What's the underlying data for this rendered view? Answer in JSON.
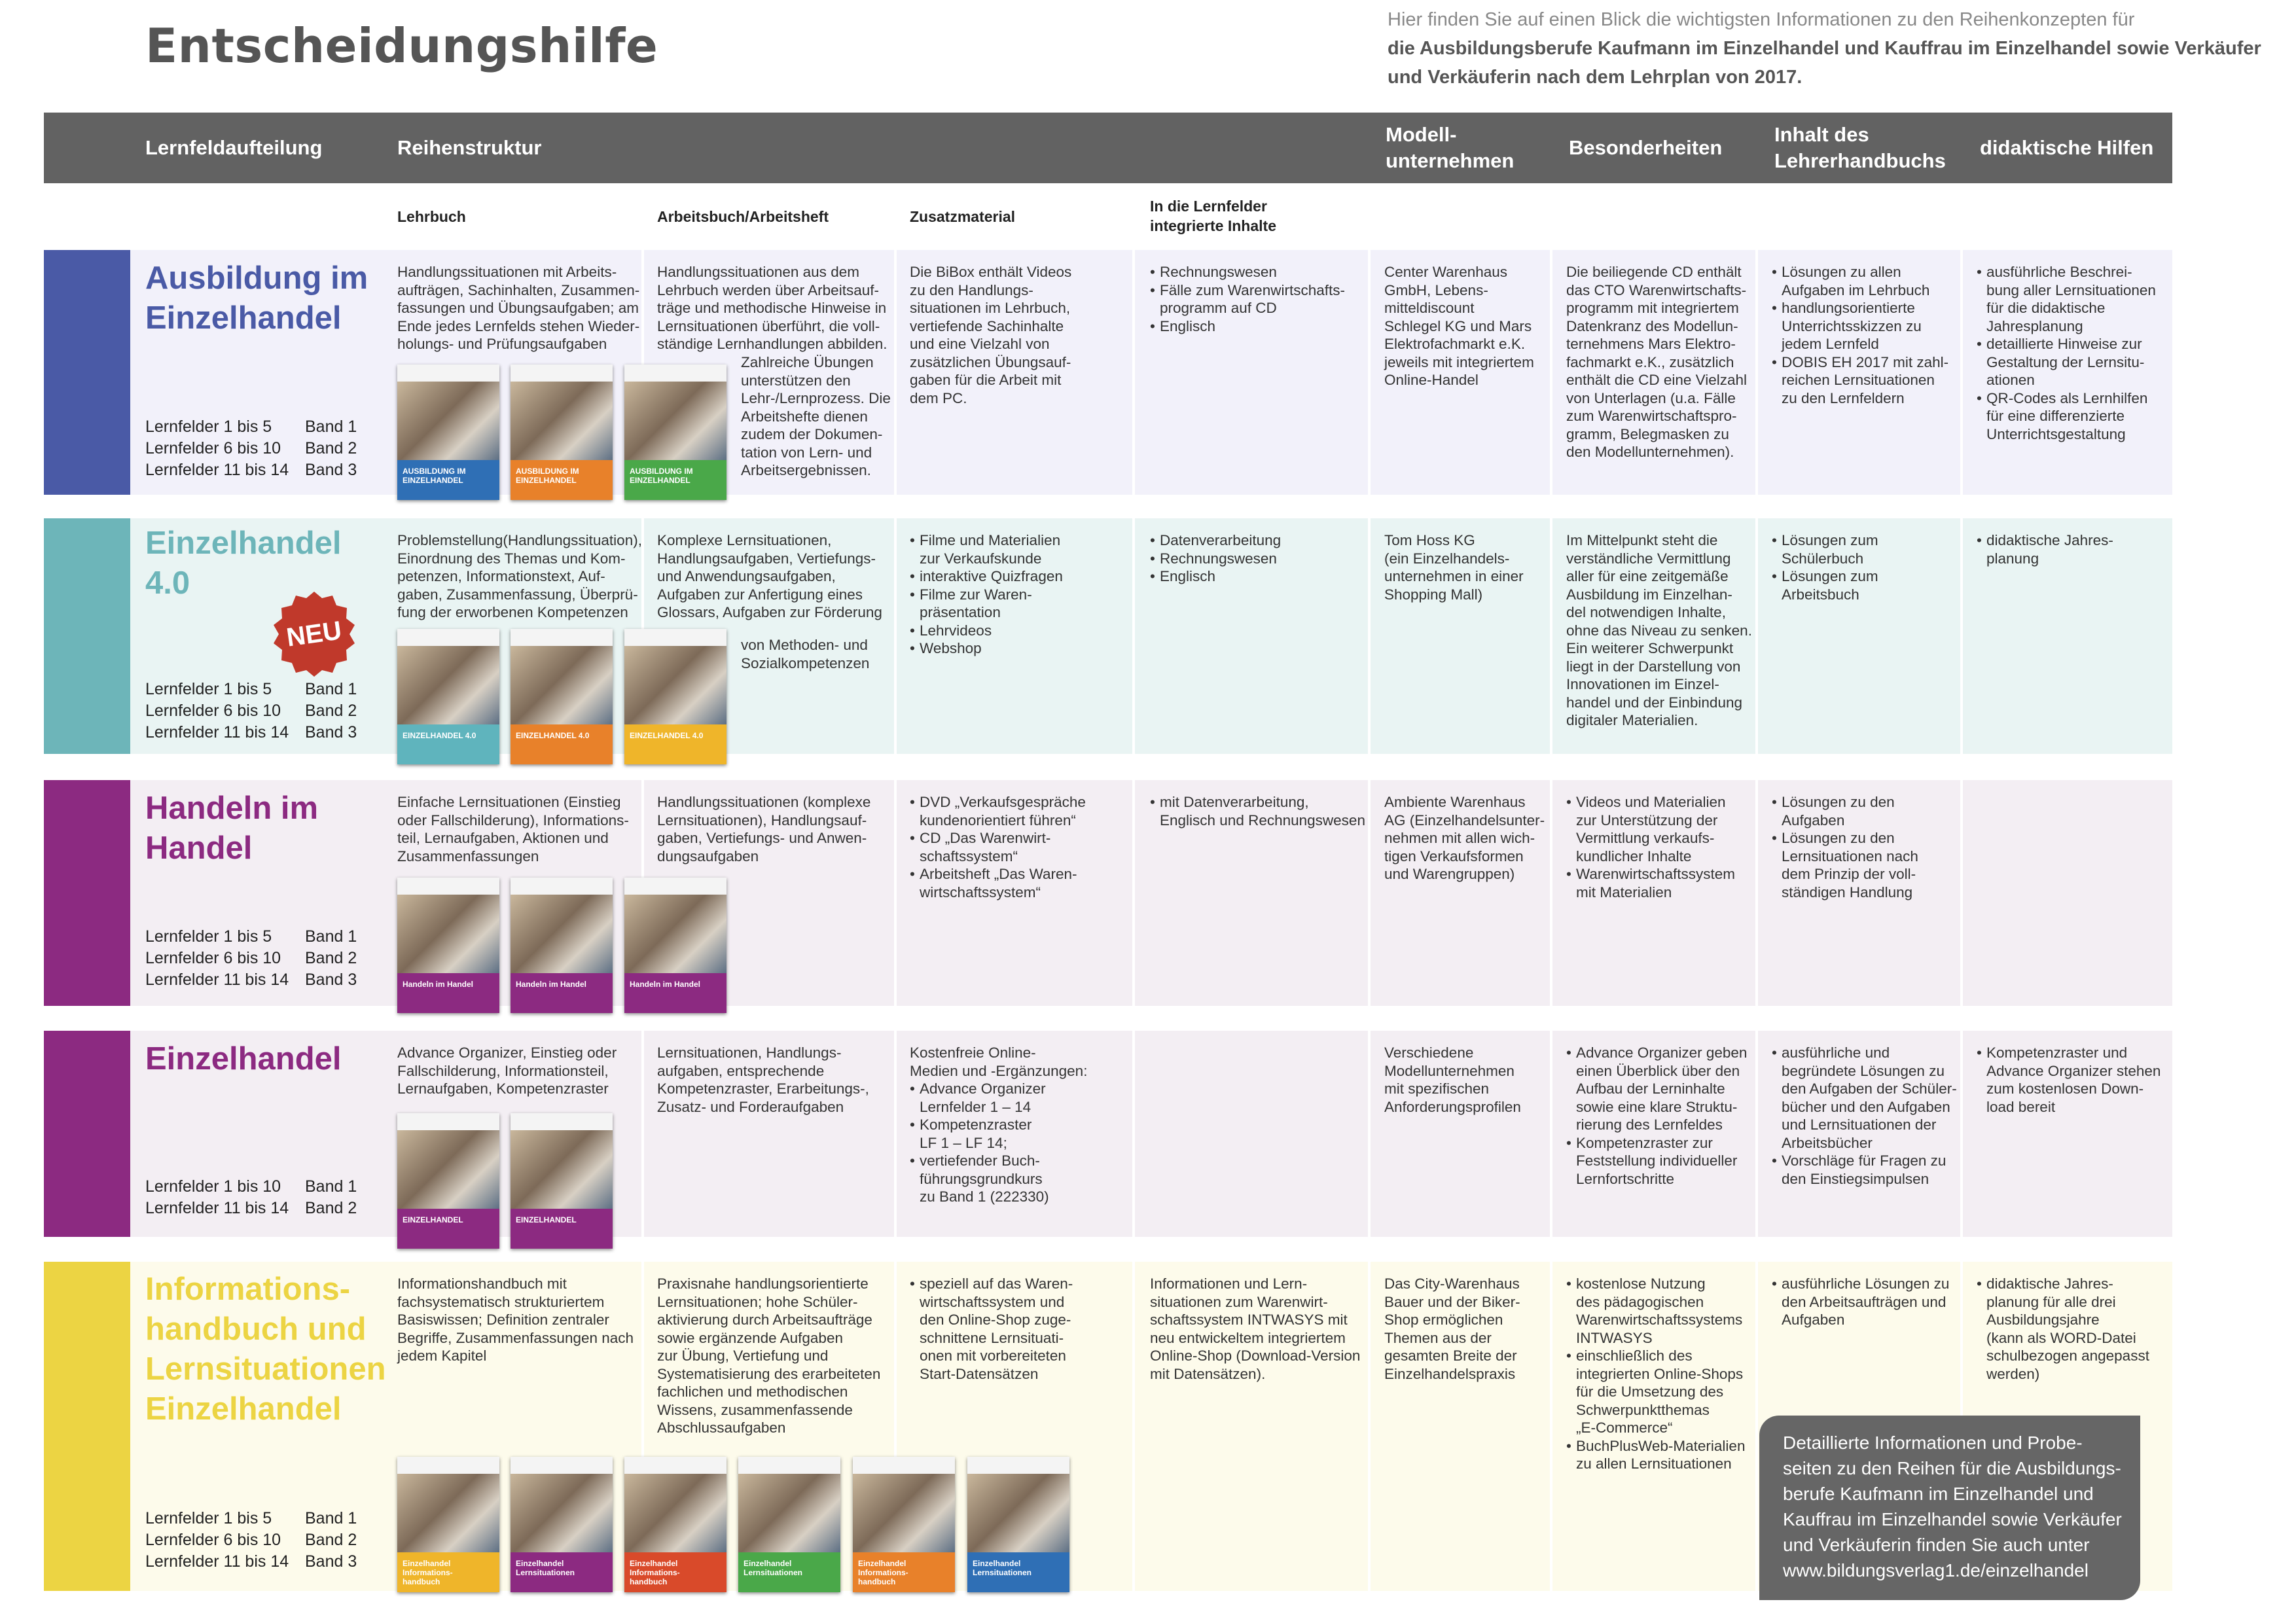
{
  "title": "Entscheidungshilfe",
  "intro": {
    "plain": "Hier finden Sie auf einen Blick die wichtigsten Informationen zu den Reihenkonzepten für",
    "bold": "die Ausbildungsberufe Kaufmann im Einzelhandel und Kauffrau im Einzelhandel sowie Verkäufer und Verkäuferin nach dem Lehrplan von 2017."
  },
  "header": {
    "lernfeld": "Lernfeldaufteilung",
    "reihe": "Reihenstruktur",
    "modell": "Modell-\nunternehmen",
    "besonder": "Besonderheiten",
    "inhalt": "Inhalt des\nLehrerhandbuchs",
    "didakt": "didaktische Hilfen"
  },
  "subheader": {
    "lehrbuch": "Lehrbuch",
    "arbeitsbuch": "Arbeitsbuch/Arbeitsheft",
    "zusatz": "Zusatzmaterial",
    "integriert": "In die Lernfelder\nintegrierte Inhalte"
  },
  "colors": {
    "header": "#626262",
    "r1": "#4a5aa6",
    "r2": "#6db5b9",
    "r3": "#8c2a81",
    "r4": "#8c2a81",
    "r5": "#ecd443"
  },
  "rows": [
    {
      "title": "Ausbildung im\nEinzelhandel",
      "lf": [
        [
          "Lernfelder 1 bis 5",
          "Band 1"
        ],
        [
          "Lernfelder 6 bis 10",
          "Band 2"
        ],
        [
          "Lernfelder 11 bis 14",
          "Band 3"
        ]
      ],
      "lehrbuch": "Handlungssituationen mit Arbeits-\naufträgen, Sachinhalten, Zusammen-\nfassungen und Übungsaufgaben; am\nEnde jedes Lernfelds stehen Wieder-\nholungs- und Prüfungsaufgaben",
      "arbeitsbuch": "Handlungssituationen aus dem\nLehrbuch werden über Arbeitsauf-\nträge und methodische Hinweise in\nLernsituationen überführt, die voll-\nständige Lernhandlungen abbilden.",
      "arbeitsbuch2": "Zahlreiche Übungen\nunterstützen den\nLehr-/Lernprozess. Die\nArbeitshefte dienen\nzudem der Dokumen-\ntation von Lern- und\nArbeitsergebnissen.",
      "zusatz": "Die BiBox enthält Videos\nzu den Handlungs-\nsituationen im Lehrbuch,\nvertiefende Sachinhalte\nund eine Vielzahl von\nzusätzlichen Übungsauf-\ngaben für die Arbeit mit\ndem PC.",
      "integriert": [
        "Rechnungswesen",
        "Fälle zum Warenwirtschafts-\nprogramm auf CD",
        "Englisch"
      ],
      "modell": "Center Warenhaus\nGmbH, Lebens-\nmitteldiscount\nSchlegel KG und Mars\nElektrofachmarkt e.K.\njeweils mit integriertem\nOnline-Handel",
      "besonder": "Die beiliegende CD enthält\ndas CTO Warenwirtschafts-\nprogramm mit integriertem\nDatenkranz des Modellun-\nternehmens Mars Elektro-\nfachmarkt e.K., zusätzlich\nenthält die CD eine Vielzahl\nvon Unterlagen (u.a. Fälle\nzum Warenwirtschaftspro-\ngramm, Belegmasken zu\nden Modellunternehmen).",
      "inhalt": [
        "Lösungen zu allen\nAufgaben im Lehrbuch",
        "handlungsorientierte\nUnterrichtsskizzen zu\njedem Lernfeld",
        "DOBIS EH 2017 mit zahl-\nreichen Lernsituationen\nzu den Lernfeldern"
      ],
      "didakt": [
        "ausführliche Beschrei-\nbung aller Lernsituationen\nfür die didaktische\nJahresplanung",
        "detaillierte Hinweise zur\nGestaltung der Lernsitu-\nationen",
        "QR-Codes als Lernhilfen\nfür eine differenzierte\nUnterrichtsgestaltung"
      ],
      "covers": [
        {
          "title": "AUSBILDUNG IM\nEINZELHANDEL",
          "color": "#2f6fb5"
        },
        {
          "title": "AUSBILDUNG IM\nEINZELHANDEL",
          "color": "#e8812a"
        },
        {
          "title": "AUSBILDUNG IM\nEINZELHANDEL",
          "color": "#4aa849"
        }
      ]
    },
    {
      "title": "Einzelhandel\n4.0",
      "badge": "NEU",
      "lf": [
        [
          "Lernfelder 1 bis 5",
          "Band 1"
        ],
        [
          "Lernfelder 6 bis 10",
          "Band 2"
        ],
        [
          "Lernfelder 11 bis 14",
          "Band 3"
        ]
      ],
      "lehrbuch": "Problemstellung(Handlungssituation),\nEinordnung des Themas und Kom-\npetenzen, Informationstext, Auf-\ngaben, Zusammenfassung, Überprü-\nfung der erworbenen Kompetenzen",
      "arbeitsbuch": "Komplexe Lernsituationen,\nHandlungsaufgaben, Vertiefungs-\nund Anwendungsaufgaben,\nAufgaben zur Anfertigung eines\nGlossars, Aufgaben zur Förderung",
      "arbeitsbuch2": "von Methoden- und\nSozialkompetenzen",
      "zusatz_list": [
        "Filme und Materialien\nzur Verkaufskunde",
        "interaktive Quizfragen",
        "Filme zur Waren-\npräsentation",
        "Lehrvideos",
        "Webshop"
      ],
      "integriert": [
        "Datenverarbeitung",
        "Rechnungswesen",
        "Englisch"
      ],
      "modell": "Tom Hoss KG\n(ein Einzelhandels-\nunternehmen in einer\nShopping Mall)",
      "besonder": "Im Mittelpunkt  steht die\nverständliche Vermittlung\naller für eine zeitgemäße\nAusbildung  im Einzelhan-\ndel notwendigen Inhalte,\nohne das Niveau zu senken.\nEin weiterer Schwerpunkt\nliegt in der Darstellung von\nInnovationen im Einzel-\nhandel und der Einbindung\ndigitaler Materialien.",
      "inhalt": [
        "Lösungen zum\nSchülerbuch",
        "Lösungen zum\nArbeitsbuch"
      ],
      "didakt": [
        "didaktische Jahres-\nplanung"
      ],
      "covers": [
        {
          "title": "EINZELHANDEL 4.0",
          "color": "#5fb4bd"
        },
        {
          "title": "EINZELHANDEL 4.0",
          "color": "#e8812a"
        },
        {
          "title": "EINZELHANDEL 4.0",
          "color": "#efb52a"
        }
      ]
    },
    {
      "title": "Handeln im\nHandel",
      "lf": [
        [
          "Lernfelder 1 bis 5",
          "Band 1"
        ],
        [
          "Lernfelder 6 bis 10",
          "Band 2"
        ],
        [
          "Lernfelder 11 bis 14",
          "Band 3"
        ]
      ],
      "lehrbuch": "Einfache Lernsituationen (Einstieg\noder Fallschilderung), Informations-\nteil, Lernaufgaben, Aktionen und\nZusammenfassungen",
      "arbeitsbuch": "Handlungssituationen (komplexe\nLernsituationen), Handlungsauf-\ngaben, Vertiefungs- und Anwen-\ndungsaufgaben",
      "zusatz_list": [
        "DVD „Verkaufsgespräche\nkundenorientiert führen“",
        "CD „Das Warenwirt-\nschaftssystem“",
        "Arbeitsheft „Das Waren-\nwirtschaftssystem“"
      ],
      "integriert": [
        "mit Datenverarbeitung,\nEnglisch und Rechnungswesen"
      ],
      "modell": "Ambiente Warenhaus\nAG (Einzelhandelsunter-\nnehmen mit allen wich-\ntigen Verkaufsformen\nund Warengruppen)",
      "besonder_list": [
        "Videos und Materialien\nzur Unterstützung der\nVermittlung verkaufs-\nkundlicher Inhalte",
        "Warenwirtschaftssystem\nmit Materialien"
      ],
      "inhalt": [
        "Lösungen zu den\nAufgaben",
        "Lösungen zu den\nLernsituationen nach\ndem Prinzip der voll-\nständigen Handlung"
      ],
      "didakt": [],
      "covers": [
        {
          "title": "Handeln im Handel",
          "color": "#8c2a81"
        },
        {
          "title": "Handeln im Handel",
          "color": "#8c2a81"
        },
        {
          "title": "Handeln im Handel",
          "color": "#8c2a81"
        }
      ]
    },
    {
      "title": "Einzelhandel",
      "lf": [
        [
          "Lernfelder 1 bis 10",
          "Band 1"
        ],
        [
          "Lernfelder 11 bis 14",
          "Band 2"
        ]
      ],
      "lehrbuch": "Advance Organizer, Einstieg oder\nFallschilderung, Informationsteil,\nLernaufgaben, Kompetenzraster",
      "arbeitsbuch": "Lernsituationen, Handlungs-\naufgaben, entsprechende\nKompetenzraster, Erarbeitungs-,\nZusatz- und Forderaufgaben",
      "zusatz_pre": "Kostenfreie Online-\nMedien und -Ergänzungen:",
      "zusatz_list": [
        "Advance Organizer\nLernfelder 1 – 14",
        "Kompetenzraster\nLF 1 – LF 14;",
        "vertiefender Buch-\nführungsgrundkurs\nzu Band 1 (222330)"
      ],
      "integriert": [],
      "modell": "Verschiedene\nModellunternehmen\nmit spezifischen\nAnforderungsprofilen",
      "besonder_list": [
        "Advance Organizer geben\neinen Überblick über den\nAufbau der Lerninhalte\nsowie eine klare Struktu-\nrierung des Lernfeldes",
        "Kompetenzraster zur\nFeststellung individueller\nLernfortschritte"
      ],
      "inhalt": [
        "ausführliche und\nbegründete Lösungen zu\nden Aufgaben der Schüler-\nbücher und den Aufgaben\nund Lernsituationen der\nArbeitsbücher",
        "Vorschläge für Fragen zu\nden Einstiegsimpulsen"
      ],
      "didakt": [
        "Kompetenzraster und\nAdvance Organizer stehen\nzum kostenlosen Down-\nload bereit"
      ],
      "covers": [
        {
          "title": "EINZELHANDEL",
          "color": "#8c2a81"
        },
        {
          "title": "EINZELHANDEL",
          "color": "#8c2a81"
        }
      ]
    },
    {
      "title": "Informations-\nhandbuch und\nLernsituationen\nEinzelhandel",
      "lf": [
        [
          "Lernfelder 1 bis 5",
          "Band 1"
        ],
        [
          "Lernfelder 6 bis 10",
          "Band 2"
        ],
        [
          "Lernfelder 11 bis 14",
          "Band 3"
        ]
      ],
      "lehrbuch": "Informationshandbuch mit\nfachsystematisch strukturiertem\nBasiswissen; Definition zentraler\nBegriffe, Zusammenfassungen nach\njedem Kapitel",
      "arbeitsbuch": "Praxisnahe handlungsorientierte\nLernsituationen; hohe Schüler-\naktivierung durch Arbeitsaufträge\nsowie ergänzende Aufgaben\nzur Übung, Vertiefung und\nSystematisierung des erarbeiteten\nfachlichen und methodischen\nWissens, zusammenfassende\nAbschlussaufgaben",
      "zusatz_list": [
        "speziell auf das Waren-\nwirtschaftssystem und\nden Online-Shop zuge-\nschnittene Lernsituati-\nonen mit vorbereiteten\nStart-Datensätzen"
      ],
      "integriert_text": "Informationen und Lern-\nsituationen zum Warenwirt-\nschaftssystem INTWASYS mit\nneu entwickeltem integriertem\nOnline-Shop (Download-Version\nmit Datensätzen).",
      "modell": "Das City-Warenhaus\nBauer und der Biker-\nShop ermöglichen\nThemen aus der\ngesamten Breite der\nEinzelhandelspraxis",
      "besonder_list": [
        "kostenlose Nutzung\ndes pädagogischen\nWarenwirtschaftssystems\nINTWASYS",
        "einschließlich des\nintegrierten Online-Shops\nfür die Umsetzung des\nSchwerpunktthemas\n„E-Commerce“",
        "BuchPlusWeb-Materialien\nzu allen Lernsituationen"
      ],
      "inhalt": [
        "ausführliche Lösungen zu\nden Arbeitsaufträgen und\nAufgaben"
      ],
      "didakt": [
        "didaktische Jahres-\nplanung für alle drei\nAusbildungsjahre\n(kann als WORD-Datei\nschulbezogen angepasst\nwerden)"
      ],
      "covers": [
        {
          "title": "Einzelhandel\nInformations-\nhandbuch",
          "color": "#efb52a"
        },
        {
          "title": "Einzelhandel\nLernsituationen",
          "color": "#8c2a81"
        },
        {
          "title": "Einzelhandel\nInformations-\nhandbuch",
          "color": "#d94a2a"
        },
        {
          "title": "Einzelhandel\nLernsituationen",
          "color": "#4aa849"
        },
        {
          "title": "Einzelhandel\nInformations-\nhandbuch",
          "color": "#e8812a"
        },
        {
          "title": "Einzelhandel\nLernsituationen",
          "color": "#2f6fb5"
        }
      ]
    }
  ],
  "infobox": "Detaillierte Informationen und Probe-\nseiten zu den Reihen für die Ausbildungs-\nberufe Kaufmann im Einzelhandel und\nKauffrau im Einzelhandel sowie Verkäufer\nund Verkäuferin finden Sie auch unter\nwww.bildungsverlag1.de/einzelhandel"
}
